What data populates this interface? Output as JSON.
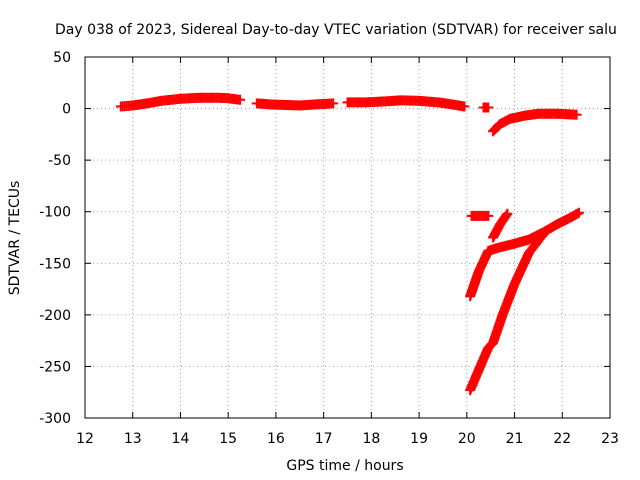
{
  "chart_data": {
    "type": "scatter",
    "title": "Day 038 of 2023, Sidereal Day-to-day VTEC variation (SDTVAR) for receiver salu",
    "xlabel": "GPS time / hours",
    "ylabel": "SDTVAR / TECUs",
    "xlim": [
      12,
      23
    ],
    "ylim": [
      -300,
      50
    ],
    "xticks": [
      "12",
      "13",
      "14",
      "15",
      "16",
      "17",
      "18",
      "19",
      "20",
      "21",
      "22",
      "23"
    ],
    "yticks": [
      "50",
      "0",
      "-50",
      "-100",
      "-150",
      "-200",
      "-250",
      "-300"
    ],
    "grid": true,
    "marker_color": "#ff0000",
    "series": [
      {
        "segments": [
          [
            [
              12.75,
              2
            ],
            [
              13.0,
              3
            ],
            [
              13.3,
              5
            ],
            [
              13.6,
              7.5
            ],
            [
              14.0,
              9.5
            ],
            [
              14.4,
              10.5
            ],
            [
              14.8,
              10.5
            ],
            [
              15.0,
              10
            ],
            [
              15.25,
              8.5
            ]
          ],
          [
            [
              15.6,
              5
            ],
            [
              15.9,
              4
            ],
            [
              16.2,
              3.5
            ],
            [
              16.5,
              3
            ],
            [
              16.8,
              4
            ],
            [
              17.2,
              5
            ]
          ],
          [
            [
              17.5,
              6
            ],
            [
              17.9,
              6
            ],
            [
              18.3,
              7
            ],
            [
              18.6,
              8
            ],
            [
              19.0,
              7.5
            ],
            [
              19.4,
              6
            ],
            [
              19.7,
              4
            ],
            [
              19.95,
              2
            ]
          ],
          [
            [
              20.35,
              1
            ],
            [
              20.45,
              1
            ]
          ],
          [
            [
              20.55,
              -22
            ],
            [
              20.7,
              -15
            ],
            [
              20.9,
              -10
            ],
            [
              21.2,
              -7
            ],
            [
              21.5,
              -5
            ],
            [
              21.9,
              -5
            ],
            [
              22.3,
              -6
            ]
          ],
          [
            [
              20.1,
              -104
            ],
            [
              20.45,
              -104
            ]
          ],
          [
            [
              20.55,
              -125
            ],
            [
              20.7,
              -112
            ],
            [
              20.85,
              -102
            ]
          ],
          [
            [
              20.07,
              -182
            ],
            [
              20.25,
              -158
            ],
            [
              20.45,
              -138
            ],
            [
              20.65,
              -135
            ],
            [
              21.0,
              -131
            ],
            [
              21.3,
              -127
            ],
            [
              21.6,
              -120
            ],
            [
              21.9,
              -112
            ],
            [
              22.2,
              -105
            ],
            [
              22.35,
              -101
            ]
          ],
          [
            [
              20.07,
              -273
            ],
            [
              20.3,
              -248
            ],
            [
              20.45,
              -232
            ],
            [
              20.55,
              -227
            ],
            [
              20.75,
              -200
            ],
            [
              21.0,
              -170
            ],
            [
              21.3,
              -140
            ],
            [
              21.6,
              -122
            ]
          ]
        ]
      }
    ]
  }
}
